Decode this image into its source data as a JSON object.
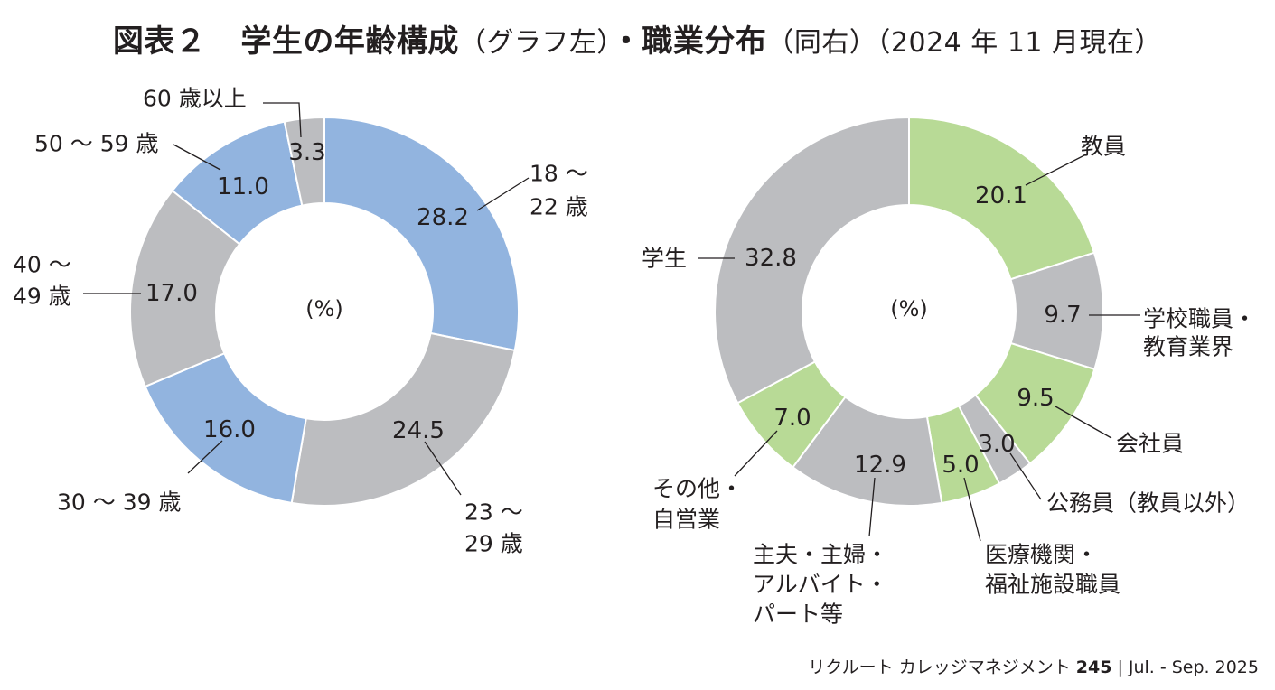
{
  "title": {
    "fig": "図表２",
    "part1": "学生の年齢構成",
    "note1": "（グラフ左）",
    "dot": "・",
    "part2": "職業分布",
    "note2": "（同右）（2024 年 11 月現在）"
  },
  "footer": {
    "publication": "リクルート カレッジマネジメント",
    "issue": "245",
    "separator": "|",
    "date": "Jul. - Sep. 2025"
  },
  "colors": {
    "blue": "#92b4df",
    "gray": "#bcbdc0",
    "green": "#b8da96",
    "line": "#231f20",
    "text": "#231f20"
  },
  "chart_data": [
    {
      "type": "pie",
      "title": "学生の年齢構成",
      "center_label": "(%)",
      "slices": [
        {
          "label": [
            "18 ～",
            "22 歳"
          ],
          "value": 28.2,
          "display": "28.2",
          "color": "#92b4df"
        },
        {
          "label": [
            "23 ～",
            "29 歳"
          ],
          "value": 24.5,
          "display": "24.5",
          "color": "#bcbdc0"
        },
        {
          "label": [
            "30 ～ 39 歳"
          ],
          "value": 16.0,
          "display": "16.0",
          "color": "#92b4df"
        },
        {
          "label": [
            "40 ～",
            "49 歳"
          ],
          "value": 17.0,
          "display": "17.0",
          "color": "#bcbdc0"
        },
        {
          "label": [
            "50 ～ 59 歳"
          ],
          "value": 11.0,
          "display": "11.0",
          "color": "#92b4df"
        },
        {
          "label": [
            "60 歳以上"
          ],
          "value": 3.3,
          "display": "3.3",
          "color": "#bcbdc0"
        }
      ]
    },
    {
      "type": "pie",
      "title": "職業分布",
      "center_label": "(%)",
      "slices": [
        {
          "label": [
            "教員"
          ],
          "value": 20.1,
          "display": "20.1",
          "color": "#b8da96"
        },
        {
          "label": [
            "学校職員・",
            "教育業界"
          ],
          "value": 9.7,
          "display": "9.7",
          "color": "#bcbdc0"
        },
        {
          "label": [
            "会社員"
          ],
          "value": 9.5,
          "display": "9.5",
          "color": "#b8da96"
        },
        {
          "label": [
            "公務員（教員以外）"
          ],
          "value": 3.0,
          "display": "3.0",
          "color": "#bcbdc0"
        },
        {
          "label": [
            "医療機関・",
            "福祉施設職員"
          ],
          "value": 5.0,
          "display": "5.0",
          "color": "#b8da96"
        },
        {
          "label": [
            "主夫・主婦・",
            "アルバイト・",
            "パート等"
          ],
          "value": 12.9,
          "display": "12.9",
          "color": "#bcbdc0"
        },
        {
          "label": [
            "その他・",
            "自営業"
          ],
          "value": 7.0,
          "display": "7.0",
          "color": "#b8da96"
        },
        {
          "label": [
            "学生"
          ],
          "value": 32.8,
          "display": "32.8",
          "color": "#bcbdc0"
        }
      ]
    }
  ]
}
